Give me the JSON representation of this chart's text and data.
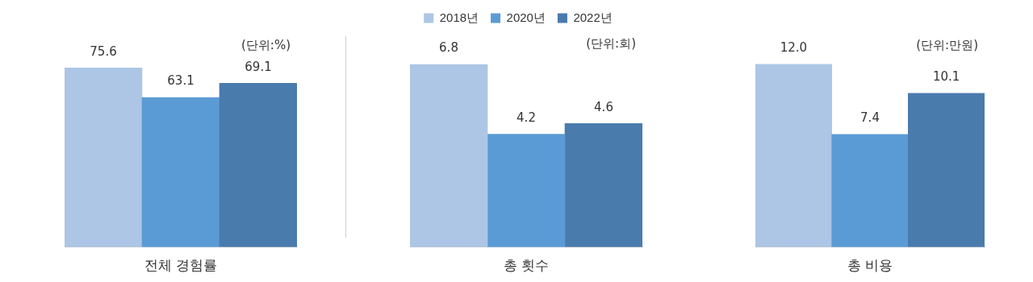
{
  "chart_data": [
    {
      "type": "bar",
      "categories": [
        null,
        null,
        null
      ],
      "xlabel": "전체 경험률",
      "tick_labels": false,
      "grid": false,
      "annotations": [
        "(단위:%)"
      ],
      "data_labels": true,
      "values": [
        75.6,
        63.1,
        69.1
      ],
      "colors": [
        "#adc6e5",
        "#5b9bd5",
        "#4a7bad"
      ]
    },
    {
      "type": "bar",
      "categories": [
        null
      ],
      "xlabel": "총 횟수",
      "tick_labels": false,
      "legend": "top",
      "grid": false,
      "annotations": [
        "(단위:회)"
      ],
      "data_labels": true,
      "series": [
        {
          "name": "2018년",
          "color": "#adc6e5",
          "values": [
            6.8
          ]
        },
        {
          "name": "2020년",
          "color": "#5b9bd5",
          "values": [
            4.2
          ]
        },
        {
          "name": "2022년",
          "color": "#4a7bad",
          "values": [
            4.6
          ]
        }
      ]
    },
    {
      "type": "bar",
      "categories": [
        null,
        null,
        null
      ],
      "xlabel": "총 비용",
      "tick_labels": false,
      "grid": false,
      "annotations": [
        "(단위:만원)"
      ],
      "values": [
        12.0,
        7.4,
        10.1
      ],
      "value_labels": [
        "12.0",
        "7.4",
        "10.1"
      ],
      "colors": [
        "#adc6e5",
        "#5b9bd5",
        "#4a7bad"
      ]
    }
  ]
}
